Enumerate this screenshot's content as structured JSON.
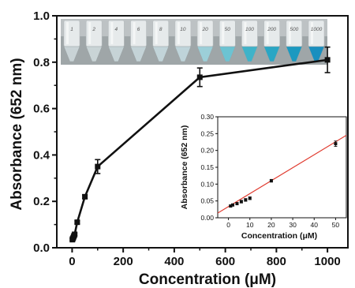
{
  "chart_data": [
    {
      "type": "line",
      "xlabel": "Concentration (μM)",
      "ylabel": "Absorbance (652 nm)",
      "xlim": [
        -60,
        1080
      ],
      "ylim": [
        0.0,
        1.0
      ],
      "xticks": [
        0,
        200,
        400,
        600,
        800,
        1000
      ],
      "yticks": [
        0.0,
        0.2,
        0.4,
        0.6,
        0.8,
        1.0
      ],
      "xtick_labels": [
        "0",
        "200",
        "400",
        "600",
        "800",
        "1000"
      ],
      "ytick_labels": [
        "0.0",
        "0.2",
        "0.4",
        "0.6",
        "0.8",
        "1.0"
      ],
      "series": [
        {
          "marker": "square",
          "color": "#000000",
          "x": [
            1,
            2,
            4,
            6,
            8,
            10,
            20,
            50,
            100,
            500,
            1000
          ],
          "y": [
            0.035,
            0.038,
            0.042,
            0.048,
            0.053,
            0.058,
            0.11,
            0.22,
            0.35,
            0.735,
            0.81
          ],
          "err": [
            0.004,
            0.004,
            0.004,
            0.005,
            0.005,
            0.005,
            0.006,
            0.008,
            0.03,
            0.04,
            0.055
          ]
        }
      ],
      "vials": {
        "labels": [
          "1",
          "2",
          "4",
          "6",
          "8",
          "10",
          "20",
          "50",
          "100",
          "200",
          "500",
          "1000"
        ],
        "liquid_colors": [
          "#c9d3d6",
          "#c9d4d6",
          "#c6d3d6",
          "#c4d3d7",
          "#c2d4d9",
          "#bfd4da",
          "#9ccfd8",
          "#6cc3d2",
          "#3fb3c9",
          "#2aa6c4",
          "#1c99c0",
          "#1a8fbf"
        ]
      }
    },
    {
      "type": "scatter",
      "role": "inset",
      "xlabel": "Concentration (μM)",
      "ylabel": "Absorbance (652 nm)",
      "xlim": [
        -5,
        55
      ],
      "ylim": [
        0.0,
        0.3
      ],
      "xticks": [
        0,
        10,
        20,
        30,
        40,
        50
      ],
      "yticks": [
        0.0,
        0.05,
        0.1,
        0.15,
        0.2,
        0.25,
        0.3
      ],
      "xtick_labels": [
        "0",
        "10",
        "20",
        "30",
        "40",
        "50"
      ],
      "ytick_labels": [
        "0.00",
        "0.05",
        "0.10",
        "0.15",
        "0.20",
        "0.25",
        "0.30"
      ],
      "series": [
        {
          "marker": "square",
          "color": "#000000",
          "x": [
            1,
            2,
            4,
            6,
            8,
            10,
            20,
            50
          ],
          "y": [
            0.035,
            0.038,
            0.042,
            0.048,
            0.053,
            0.058,
            0.11,
            0.22
          ],
          "err": [
            0.003,
            0.003,
            0.003,
            0.004,
            0.004,
            0.004,
            0.004,
            0.008
          ]
        }
      ],
      "fit_line": {
        "color": "#e03a2e",
        "x": [
          -5,
          55
        ],
        "y": [
          0.014,
          0.245
        ]
      }
    }
  ]
}
